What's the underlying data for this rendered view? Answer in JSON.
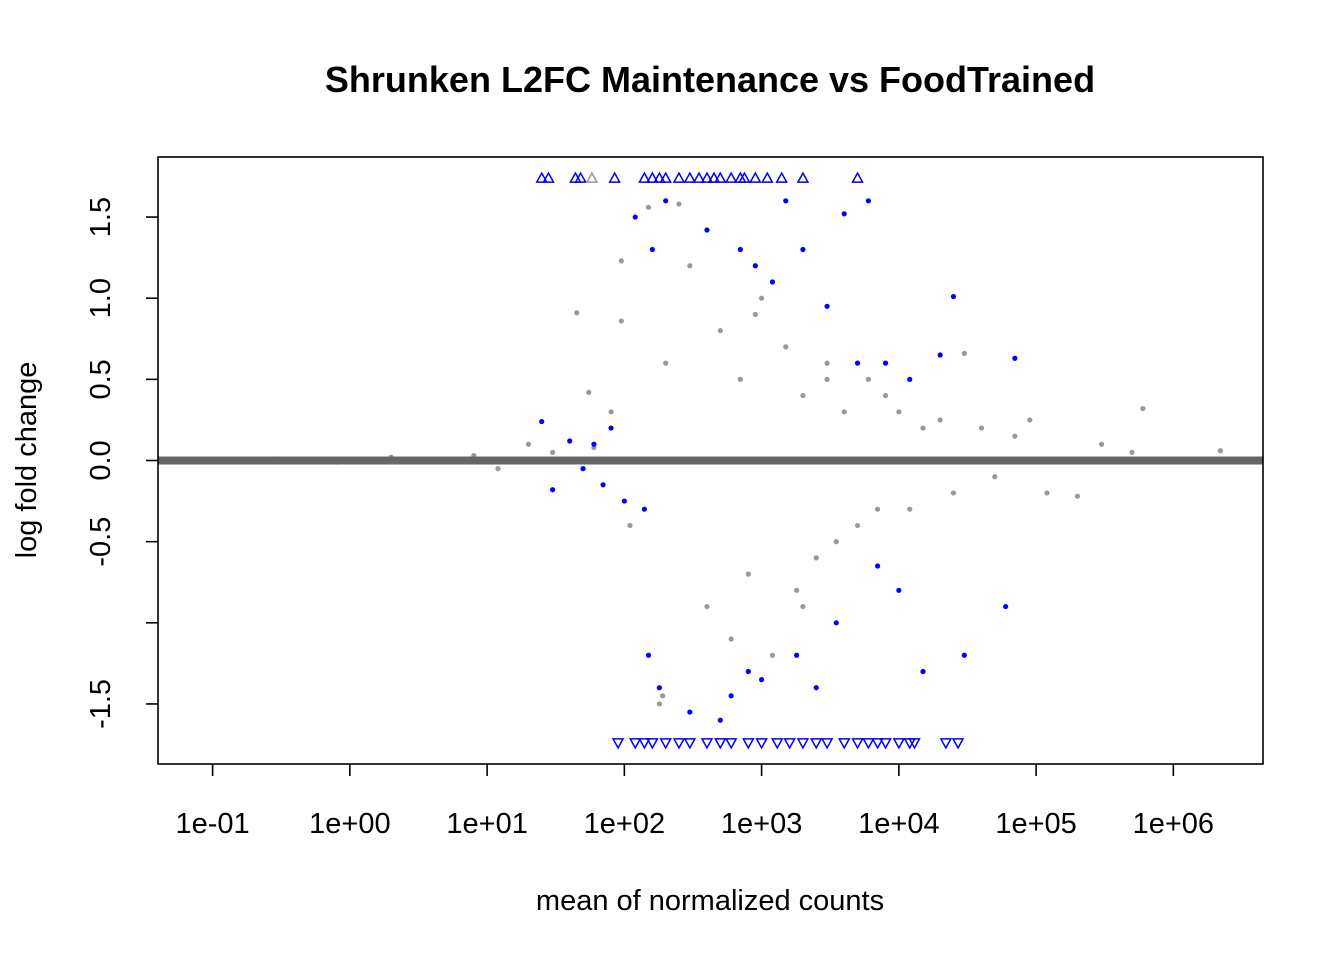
{
  "chart_data": {
    "type": "scatter",
    "title": "Shrunken L2FC Maintenance vs FoodTrained",
    "xlabel": "mean of normalized counts",
    "ylabel": "log fold change",
    "x_scale": "log10",
    "xlim": [
      0.04,
      4500000
    ],
    "ylim": [
      -1.87,
      1.87
    ],
    "x_ticks": [
      0.1,
      1,
      10,
      100,
      1000,
      10000,
      100000,
      1000000
    ],
    "x_tick_labels": [
      "1e-01",
      "1e+00",
      "1e+01",
      "1e+02",
      "1e+03",
      "1e+04",
      "1e+05",
      "1e+06"
    ],
    "y_ticks": [
      -1.5,
      -1.0,
      -0.5,
      0.0,
      0.5,
      1.0,
      1.5
    ],
    "y_tick_labels": [
      "-1.5",
      "",
      "-0.5",
      "0.0",
      "0.5",
      "1.0",
      "1.5"
    ],
    "reference_line": {
      "y": 0,
      "color": "#666666"
    },
    "grid": false,
    "legend": "none",
    "colors": {
      "not_significant": "#999999",
      "significant": "#0000ff"
    },
    "series": [
      {
        "color": "#999999",
        "marker": "point",
        "x": [
          0.12,
          0.3,
          0.8,
          2.0,
          4.0,
          8.0,
          12,
          20,
          30,
          45,
          60,
          80,
          95,
          110,
          150,
          200,
          250,
          300,
          400,
          500,
          600,
          700,
          800,
          900,
          1000,
          1200,
          1500,
          1800,
          2000,
          2500,
          3000,
          3500,
          4000,
          5000,
          6000,
          7000,
          8000,
          10000,
          12000,
          15000,
          20000,
          25000,
          30000,
          40000,
          50000,
          70000,
          90000,
          120000,
          200000,
          300000,
          500000,
          600000,
          2200000,
          10,
          55,
          95,
          180,
          190,
          2000,
          700,
          3000
        ],
        "y": [
          0.0,
          0.01,
          -0.01,
          0.02,
          0.0,
          0.03,
          -0.05,
          0.1,
          0.05,
          0.91,
          0.08,
          0.3,
          1.23,
          -0.4,
          1.56,
          0.6,
          1.58,
          1.2,
          -0.9,
          0.8,
          -1.1,
          0.5,
          -0.7,
          0.9,
          1.0,
          -1.2,
          0.7,
          -0.8,
          0.4,
          -0.6,
          0.6,
          -0.5,
          0.3,
          -0.4,
          0.5,
          -0.3,
          0.4,
          0.3,
          -0.3,
          0.2,
          0.25,
          -0.2,
          0.66,
          0.2,
          -0.1,
          0.15,
          0.25,
          -0.2,
          -0.22,
          0.1,
          0.05,
          0.32,
          0.06,
          0.0,
          0.42,
          0.86,
          -1.5,
          -1.45,
          -0.9,
          1.3,
          0.5
        ]
      },
      {
        "color": "#0000ff",
        "marker": "point",
        "x": [
          25,
          30,
          40,
          50,
          60,
          70,
          80,
          100,
          120,
          140,
          150,
          160,
          180,
          200,
          300,
          400,
          500,
          600,
          700,
          800,
          900,
          1000,
          1200,
          1500,
          1800,
          2000,
          2500,
          3000,
          3500,
          4000,
          5000,
          6000,
          7000,
          8000,
          10000,
          12000,
          15000,
          20000,
          25000,
          30000,
          60000,
          70000
        ],
        "y": [
          0.24,
          -0.18,
          0.12,
          -0.05,
          0.1,
          -0.15,
          0.2,
          -0.25,
          1.5,
          -0.3,
          -1.2,
          1.3,
          -1.4,
          1.6,
          -1.55,
          1.42,
          -1.6,
          -1.45,
          1.3,
          -1.3,
          1.2,
          -1.35,
          1.1,
          1.6,
          -1.2,
          1.3,
          -1.4,
          0.95,
          -1.0,
          1.52,
          0.6,
          1.6,
          -0.65,
          0.6,
          -0.8,
          0.5,
          -1.3,
          0.65,
          1.01,
          -1.2,
          -0.9,
          0.63
        ]
      },
      {
        "color": "#0000ff",
        "marker": "triangle-up",
        "x": [
          25,
          28,
          44,
          48,
          85,
          140,
          160,
          180,
          200,
          250,
          300,
          350,
          400,
          450,
          500,
          600,
          700,
          750,
          900,
          1100,
          1400,
          2000,
          5000
        ],
        "y": [
          1.74,
          1.74,
          1.74,
          1.74,
          1.74,
          1.74,
          1.74,
          1.74,
          1.74,
          1.74,
          1.74,
          1.74,
          1.74,
          1.74,
          1.74,
          1.74,
          1.74,
          1.74,
          1.74,
          1.74,
          1.74,
          1.74,
          1.74
        ]
      },
      {
        "color": "#999999",
        "marker": "triangle-up",
        "x": [
          58
        ],
        "y": [
          1.74
        ]
      },
      {
        "color": "#0000ff",
        "marker": "triangle-down",
        "x": [
          90,
          120,
          140,
          160,
          200,
          250,
          300,
          400,
          500,
          600,
          800,
          1000,
          1300,
          1600,
          2000,
          2500,
          3000,
          4000,
          5000,
          6000,
          7000,
          8000,
          10000,
          12000,
          13000,
          22000,
          27000
        ],
        "y": [
          -1.74,
          -1.74,
          -1.74,
          -1.74,
          -1.74,
          -1.74,
          -1.74,
          -1.74,
          -1.74,
          -1.74,
          -1.74,
          -1.74,
          -1.74,
          -1.74,
          -1.74,
          -1.74,
          -1.74,
          -1.74,
          -1.74,
          -1.74,
          -1.74,
          -1.74,
          -1.74,
          -1.74,
          -1.74,
          -1.74,
          -1.74
        ]
      }
    ]
  }
}
